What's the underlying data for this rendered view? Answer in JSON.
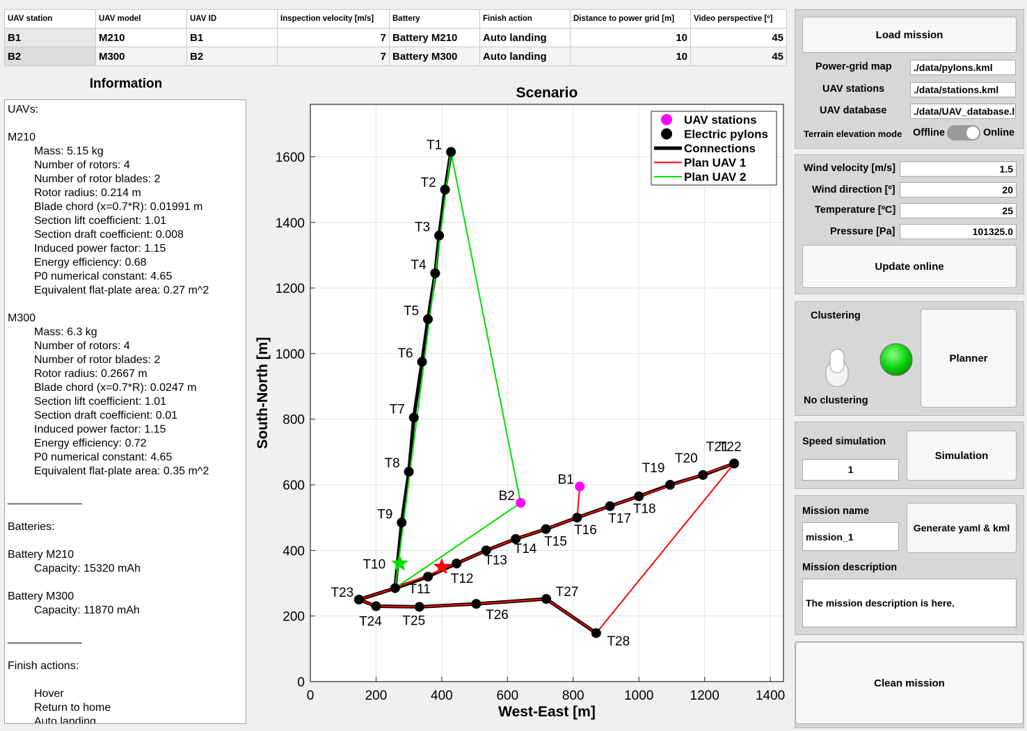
{
  "table": {
    "headers": [
      "UAV station",
      "UAV model",
      "UAV ID",
      "Inspection velocity [m/s]",
      "Battery",
      "Finish action",
      "Distance to power grid [m]",
      "Video perspective [º]"
    ],
    "rows": [
      [
        "B1",
        "M210",
        "B1",
        "7",
        "Battery M210",
        "Auto landing",
        "10",
        "45"
      ],
      [
        "B2",
        "M300",
        "B2",
        "7",
        "Battery M300",
        "Auto landing",
        "10",
        "45"
      ]
    ]
  },
  "info": {
    "title": "Information",
    "lines": [
      {
        "text": "UAVs:",
        "indent": false
      },
      {
        "text": "",
        "indent": false
      },
      {
        "text": "M210",
        "indent": false
      },
      {
        "text": "Mass: 5.15 kg",
        "indent": true
      },
      {
        "text": "Number of rotors: 4",
        "indent": true
      },
      {
        "text": "Number of rotor blades: 2",
        "indent": true
      },
      {
        "text": "Rotor radius: 0.214 m",
        "indent": true
      },
      {
        "text": "Blade chord (x=0.7*R): 0.01991 m",
        "indent": true
      },
      {
        "text": "Section lift coefficient: 1.01",
        "indent": true
      },
      {
        "text": "Section draft coefficient: 0.008",
        "indent": true
      },
      {
        "text": "Induced power factor: 1.15",
        "indent": true
      },
      {
        "text": "Energy efficiency: 0.68",
        "indent": true
      },
      {
        "text": "P0 numerical constant: 4.65",
        "indent": true
      },
      {
        "text": "Equivalent flat-plate area: 0.27 m^2",
        "indent": true
      },
      {
        "text": "",
        "indent": false
      },
      {
        "text": "M300",
        "indent": false
      },
      {
        "text": "Mass: 6.3 kg",
        "indent": true
      },
      {
        "text": "Number of rotors: 4",
        "indent": true
      },
      {
        "text": "Number of rotor blades: 2",
        "indent": true
      },
      {
        "text": "Rotor radius: 0.2667 m",
        "indent": true
      },
      {
        "text": "Blade chord (x=0.7*R): 0.0247 m",
        "indent": true
      },
      {
        "text": "Section lift coefficient: 1.01",
        "indent": true
      },
      {
        "text": "Section draft coefficient: 0.01",
        "indent": true
      },
      {
        "text": "Induced power factor: 1.15",
        "indent": true
      },
      {
        "text": "Energy efficiency: 0.72",
        "indent": true
      },
      {
        "text": "P0 numerical constant: 4.65",
        "indent": true
      },
      {
        "text": "Equivalent flat-plate area: 0.35 m^2",
        "indent": true
      },
      {
        "text": "",
        "indent": false
      },
      {
        "text": "____________",
        "indent": false
      },
      {
        "text": "",
        "indent": false
      },
      {
        "text": "Batteries:",
        "indent": false
      },
      {
        "text": "",
        "indent": false
      },
      {
        "text": "Battery M210",
        "indent": false
      },
      {
        "text": "Capacity: 15320 mAh",
        "indent": true
      },
      {
        "text": "",
        "indent": false
      },
      {
        "text": "Battery M300",
        "indent": false
      },
      {
        "text": "Capacity: 11870 mAh",
        "indent": true
      },
      {
        "text": "",
        "indent": false
      },
      {
        "text": "____________",
        "indent": false
      },
      {
        "text": "",
        "indent": false
      },
      {
        "text": "Finish actions:",
        "indent": false
      },
      {
        "text": "",
        "indent": false
      },
      {
        "text": "Hover",
        "indent": true
      },
      {
        "text": "Return to home",
        "indent": true
      },
      {
        "text": "Auto landing",
        "indent": true
      }
    ]
  },
  "chart_data": {
    "type": "scatter",
    "title": "Scenario",
    "xlabel": "West-East [m]",
    "ylabel": "South-North [m]",
    "xlim": [
      0,
      1440
    ],
    "ylim": [
      0,
      1760
    ],
    "xticks": [
      0,
      200,
      400,
      600,
      800,
      1000,
      1200,
      1400
    ],
    "yticks": [
      0,
      200,
      400,
      600,
      800,
      1000,
      1200,
      1400,
      1600
    ],
    "grid": true,
    "legend_position": "top-right",
    "legend": [
      "UAV stations",
      "Electric pylons",
      "Connections",
      "Plan UAV 1",
      "Plan UAV 2"
    ],
    "colors": {
      "stations": "#ff00ff",
      "pylons": "#000000",
      "connections": "#000000",
      "plan1": "#ff0000",
      "plan2": "#00dd00"
    },
    "stations": [
      {
        "name": "B1",
        "x": 820,
        "y": 595
      },
      {
        "name": "B2",
        "x": 640,
        "y": 545
      }
    ],
    "pylons": [
      {
        "name": "T1",
        "x": 428,
        "y": 1615
      },
      {
        "name": "T2",
        "x": 410,
        "y": 1500
      },
      {
        "name": "T3",
        "x": 392,
        "y": 1360
      },
      {
        "name": "T4",
        "x": 380,
        "y": 1245
      },
      {
        "name": "T5",
        "x": 358,
        "y": 1105
      },
      {
        "name": "T6",
        "x": 340,
        "y": 975
      },
      {
        "name": "T7",
        "x": 315,
        "y": 805
      },
      {
        "name": "T8",
        "x": 300,
        "y": 640
      },
      {
        "name": "T9",
        "x": 278,
        "y": 485
      },
      {
        "name": "T10",
        "x": 258,
        "y": 285
      },
      {
        "name": "T11",
        "x": 358,
        "y": 320
      },
      {
        "name": "T12",
        "x": 445,
        "y": 360
      },
      {
        "name": "T13",
        "x": 535,
        "y": 400
      },
      {
        "name": "T14",
        "x": 625,
        "y": 435
      },
      {
        "name": "T15",
        "x": 717,
        "y": 465
      },
      {
        "name": "T16",
        "x": 812,
        "y": 500
      },
      {
        "name": "T17",
        "x": 912,
        "y": 535
      },
      {
        "name": "T18",
        "x": 1000,
        "y": 565
      },
      {
        "name": "T19",
        "x": 1095,
        "y": 600
      },
      {
        "name": "T20",
        "x": 1195,
        "y": 630
      },
      {
        "name": "T21",
        "x": 1290,
        "y": 665
      },
      {
        "name": "T22",
        "x": 1290,
        "y": 665
      },
      {
        "name": "T23",
        "x": 148,
        "y": 250
      },
      {
        "name": "T24",
        "x": 200,
        "y": 230
      },
      {
        "name": "T25",
        "x": 332,
        "y": 228
      },
      {
        "name": "T26",
        "x": 505,
        "y": 237
      },
      {
        "name": "T27",
        "x": 718,
        "y": 252
      },
      {
        "name": "T28",
        "x": 870,
        "y": 148
      }
    ],
    "connections": [
      [
        "T1",
        "T2",
        "T3",
        "T4",
        "T5",
        "T6",
        "T7",
        "T8",
        "T9",
        "T10",
        "T23"
      ],
      [
        "T23",
        "T10",
        "T11",
        "T12",
        "T13",
        "T14",
        "T15",
        "T16",
        "T17",
        "T18",
        "T19",
        "T20",
        "T21"
      ],
      [
        "T23",
        "T24",
        "T25",
        "T26",
        "T27",
        "T28"
      ]
    ],
    "plan_uav1": [
      [
        820,
        595
      ],
      [
        812,
        500
      ],
      [
        1290,
        665
      ],
      [
        870,
        148
      ],
      [
        718,
        252
      ],
      [
        505,
        237
      ],
      [
        332,
        228
      ],
      [
        200,
        230
      ],
      [
        148,
        250
      ],
      [
        258,
        285
      ],
      [
        445,
        360
      ],
      [
        535,
        400
      ],
      [
        625,
        435
      ],
      [
        717,
        465
      ],
      [
        812,
        500
      ]
    ],
    "plan_uav2": [
      [
        640,
        545
      ],
      [
        258,
        285
      ],
      [
        428,
        1615
      ],
      [
        640,
        545
      ]
    ],
    "markers": [
      {
        "name": "uav2-position",
        "x": 272,
        "y": 360,
        "color": "#00dd00"
      },
      {
        "name": "uav1-position",
        "x": 400,
        "y": 350,
        "color": "#ff0000"
      }
    ]
  },
  "controls": {
    "load_mission": "Load mission",
    "power_grid_map_label": "Power-grid map",
    "power_grid_map_value": "./data/pylons.kml",
    "uav_stations_label": "UAV stations",
    "uav_stations_value": "./data/stations.kml",
    "uav_database_label": "UAV database",
    "uav_database_value": "./data/UAV_database.l",
    "terrain_label": "Terrain elevation mode",
    "terrain_off": "Offline",
    "terrain_on": "Online",
    "wind_velocity_label": "Wind velocity [m/s]",
    "wind_velocity_value": "1.5",
    "wind_direction_label": "Wind direction [º]",
    "wind_direction_value": "20",
    "temperature_label": "Temperature [ºC]",
    "temperature_value": "25",
    "pressure_label": "Pressure [Pa]",
    "pressure_value": "101325.0",
    "update_online": "Update online",
    "clustering_label": "Clustering",
    "clustering_state": "No clustering",
    "planner": "Planner",
    "speed_label": "Speed simulation",
    "speed_value": "1",
    "simulation": "Simulation",
    "mission_name_label": "Mission name",
    "mission_name_value": "mission_1",
    "generate": "Generate yaml & kml",
    "mission_desc_label": "Mission description",
    "mission_desc_value": "The mission description is here.",
    "clean_mission": "Clean mission"
  }
}
